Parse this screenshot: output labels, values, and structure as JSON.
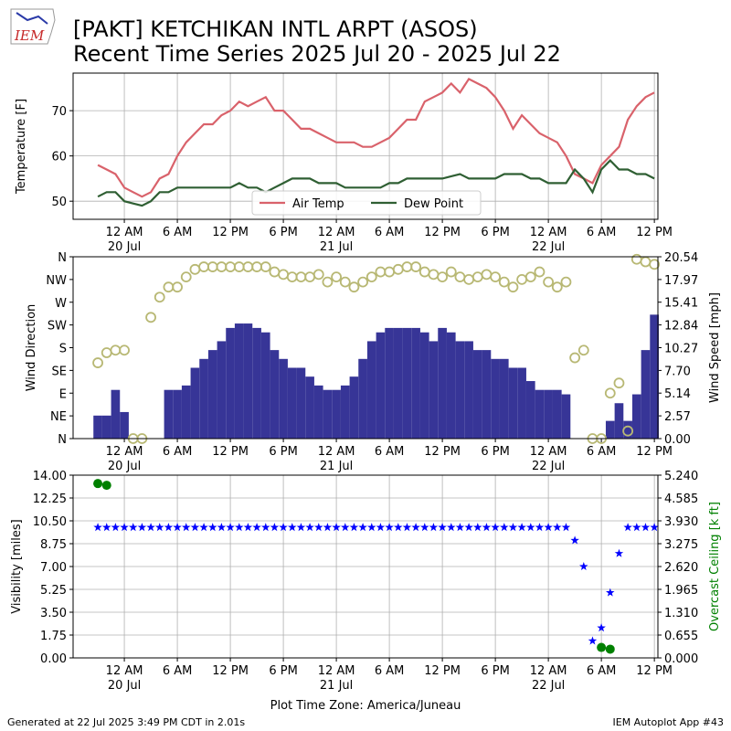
{
  "title": "[PAKT] KETCHIKAN INTL ARPT (ASOS)",
  "subtitle": "Recent Time Series 2025 Jul 20 - 2025 Jul 22",
  "logo": "IEM",
  "footer_left": "Generated at 22 Jul 2025 3:49 PM CDT in 2.01s",
  "footer_right": "IEM Autoplot App #43",
  "chart_data": [
    {
      "type": "line",
      "ylabel": "Temperature [F]",
      "grid": true,
      "legend": "lower center",
      "x": [
        "2025-07-19 21:00",
        "2025-07-19 22:00",
        "2025-07-19 23:00",
        "2025-07-20 00:00",
        "2025-07-20 01:00",
        "2025-07-20 02:00",
        "2025-07-20 03:00",
        "2025-07-20 04:00",
        "2025-07-20 05:00",
        "2025-07-20 06:00",
        "2025-07-20 07:00",
        "2025-07-20 08:00",
        "2025-07-20 09:00",
        "2025-07-20 10:00",
        "2025-07-20 11:00",
        "2025-07-20 12:00",
        "2025-07-20 13:00",
        "2025-07-20 14:00",
        "2025-07-20 15:00",
        "2025-07-20 16:00",
        "2025-07-20 17:00",
        "2025-07-20 18:00",
        "2025-07-20 19:00",
        "2025-07-20 20:00",
        "2025-07-20 21:00",
        "2025-07-20 22:00",
        "2025-07-20 23:00",
        "2025-07-21 00:00",
        "2025-07-21 01:00",
        "2025-07-21 02:00",
        "2025-07-21 03:00",
        "2025-07-21 04:00",
        "2025-07-21 05:00",
        "2025-07-21 06:00",
        "2025-07-21 07:00",
        "2025-07-21 08:00",
        "2025-07-21 09:00",
        "2025-07-21 10:00",
        "2025-07-21 11:00",
        "2025-07-21 12:00",
        "2025-07-21 13:00",
        "2025-07-21 14:00",
        "2025-07-21 15:00",
        "2025-07-21 16:00",
        "2025-07-21 17:00",
        "2025-07-21 18:00",
        "2025-07-21 19:00",
        "2025-07-21 20:00",
        "2025-07-21 21:00",
        "2025-07-21 22:00",
        "2025-07-21 23:00",
        "2025-07-22 00:00",
        "2025-07-22 01:00",
        "2025-07-22 02:00",
        "2025-07-22 03:00",
        "2025-07-22 04:00",
        "2025-07-22 05:00",
        "2025-07-22 06:00",
        "2025-07-22 07:00",
        "2025-07-22 08:00",
        "2025-07-22 09:00",
        "2025-07-22 10:00",
        "2025-07-22 11:00",
        "2025-07-22 12:00"
      ],
      "xlim": [
        "2025-07-19 18:12",
        "2025-07-22 12:24"
      ],
      "xticks": [
        {
          "value": "2025-07-20 00:00",
          "label": "12 AM\n20 Jul"
        },
        {
          "value": "2025-07-20 06:00",
          "label": "6 AM"
        },
        {
          "value": "2025-07-20 12:00",
          "label": "12 PM"
        },
        {
          "value": "2025-07-20 18:00",
          "label": "6 PM"
        },
        {
          "value": "2025-07-21 00:00",
          "label": "12 AM\n21 Jul"
        },
        {
          "value": "2025-07-21 06:00",
          "label": "6 AM"
        },
        {
          "value": "2025-07-21 12:00",
          "label": "12 PM"
        },
        {
          "value": "2025-07-21 18:00",
          "label": "6 PM"
        },
        {
          "value": "2025-07-22 00:00",
          "label": "12 AM\n22 Jul"
        },
        {
          "value": "2025-07-22 06:00",
          "label": "6 AM"
        },
        {
          "value": "2025-07-22 12:00",
          "label": "12 PM"
        }
      ],
      "ylim": [
        46,
        78.3
      ],
      "yticks": [
        50,
        60,
        70
      ],
      "series": [
        {
          "name": "Air Temp",
          "color": "#d9626b",
          "values": [
            58,
            57,
            56,
            53,
            52,
            51,
            52,
            55,
            56,
            60,
            63,
            65,
            67,
            67,
            69,
            70,
            72,
            71,
            72,
            73,
            70,
            70,
            68,
            66,
            66,
            65,
            64,
            63,
            63,
            63,
            62,
            62,
            63,
            64,
            66,
            68,
            68,
            72,
            73,
            74,
            76,
            74,
            77,
            76,
            75,
            73,
            70,
            66,
            69,
            67,
            65,
            64,
            63,
            60,
            56,
            55,
            54,
            58,
            60,
            62,
            68,
            71,
            73,
            74
          ]
        },
        {
          "name": "Dew Point",
          "color": "#2f5f33",
          "values": [
            51,
            52,
            52,
            50,
            49.5,
            49,
            50,
            52,
            52,
            53,
            53,
            53,
            53,
            53,
            53,
            53,
            54,
            53,
            53,
            52,
            53,
            54,
            55,
            55,
            55,
            54,
            54,
            54,
            53,
            53,
            53,
            53,
            53,
            54,
            54,
            55,
            55,
            55,
            55,
            55,
            55.5,
            56,
            55,
            55,
            55,
            55,
            56,
            56,
            56,
            55,
            55,
            54,
            54,
            54,
            57,
            55,
            52,
            57,
            59,
            57,
            57,
            56,
            56,
            55
          ]
        }
      ]
    },
    {
      "type": "combo",
      "ylabel": "Wind Direction",
      "y2label": "Wind Speed [mph]",
      "grid": false,
      "x": [
        "2025-07-19 21:00",
        "2025-07-19 22:00",
        "2025-07-19 23:00",
        "2025-07-20 00:00",
        "2025-07-20 01:00",
        "2025-07-20 02:00",
        "2025-07-20 03:00",
        "2025-07-20 04:00",
        "2025-07-20 05:00",
        "2025-07-20 06:00",
        "2025-07-20 07:00",
        "2025-07-20 08:00",
        "2025-07-20 09:00",
        "2025-07-20 10:00",
        "2025-07-20 11:00",
        "2025-07-20 12:00",
        "2025-07-20 13:00",
        "2025-07-20 14:00",
        "2025-07-20 15:00",
        "2025-07-20 16:00",
        "2025-07-20 17:00",
        "2025-07-20 18:00",
        "2025-07-20 19:00",
        "2025-07-20 20:00",
        "2025-07-20 21:00",
        "2025-07-20 22:00",
        "2025-07-20 23:00",
        "2025-07-21 00:00",
        "2025-07-21 01:00",
        "2025-07-21 02:00",
        "2025-07-21 03:00",
        "2025-07-21 04:00",
        "2025-07-21 05:00",
        "2025-07-21 06:00",
        "2025-07-21 07:00",
        "2025-07-21 08:00",
        "2025-07-21 09:00",
        "2025-07-21 10:00",
        "2025-07-21 11:00",
        "2025-07-21 12:00",
        "2025-07-21 13:00",
        "2025-07-21 14:00",
        "2025-07-21 15:00",
        "2025-07-21 16:00",
        "2025-07-21 17:00",
        "2025-07-21 18:00",
        "2025-07-21 19:00",
        "2025-07-21 20:00",
        "2025-07-21 21:00",
        "2025-07-21 22:00",
        "2025-07-21 23:00",
        "2025-07-22 00:00",
        "2025-07-22 01:00",
        "2025-07-22 02:00",
        "2025-07-22 03:00",
        "2025-07-22 04:00",
        "2025-07-22 05:00",
        "2025-07-22 06:00",
        "2025-07-22 07:00",
        "2025-07-22 08:00",
        "2025-07-22 09:00",
        "2025-07-22 10:00",
        "2025-07-22 11:00",
        "2025-07-22 12:00"
      ],
      "xlim": [
        "2025-07-19 18:12",
        "2025-07-22 12:24"
      ],
      "xticks": [
        {
          "value": "2025-07-20 00:00",
          "label": "12 AM\n20 Jul"
        },
        {
          "value": "2025-07-20 06:00",
          "label": "6 AM"
        },
        {
          "value": "2025-07-20 12:00",
          "label": "12 PM"
        },
        {
          "value": "2025-07-20 18:00",
          "label": "6 PM"
        },
        {
          "value": "2025-07-21 00:00",
          "label": "12 AM\n21 Jul"
        },
        {
          "value": "2025-07-21 06:00",
          "label": "6 AM"
        },
        {
          "value": "2025-07-21 12:00",
          "label": "12 PM"
        },
        {
          "value": "2025-07-21 18:00",
          "label": "6 PM"
        },
        {
          "value": "2025-07-22 00:00",
          "label": "12 AM\n22 Jul"
        },
        {
          "value": "2025-07-22 06:00",
          "label": "6 AM"
        },
        {
          "value": "2025-07-22 12:00",
          "label": "12 PM"
        }
      ],
      "ylim": [
        0,
        360
      ],
      "yticks": [
        {
          "value": 0,
          "label": "N"
        },
        {
          "value": 45,
          "label": "NE"
        },
        {
          "value": 90,
          "label": "E"
        },
        {
          "value": 135,
          "label": "SE"
        },
        {
          "value": 180,
          "label": "S"
        },
        {
          "value": 225,
          "label": "SW"
        },
        {
          "value": 270,
          "label": "W"
        },
        {
          "value": 315,
          "label": "NW"
        },
        {
          "value": 360,
          "label": "N"
        }
      ],
      "y2lim": [
        0,
        20.54
      ],
      "y2ticks": [
        {
          "value": 0,
          "label": "0.00"
        },
        2.57,
        5.14,
        {
          "value": 7.7,
          "label": "7.70"
        },
        10.27,
        12.84,
        15.41,
        17.97,
        20.54
      ],
      "series": [
        {
          "name": "Wind Speed",
          "type": "bar",
          "axis": "y2",
          "color": "#373597",
          "values": [
            2.6,
            2.6,
            5.5,
            3,
            0,
            0,
            0,
            0,
            5.5,
            5.5,
            6,
            8,
            9,
            10,
            11,
            12.5,
            13,
            13,
            12.5,
            12,
            10,
            9,
            8,
            8,
            7,
            6,
            5.5,
            5.5,
            6,
            7,
            9,
            11,
            12,
            12.5,
            12.5,
            12.5,
            12.5,
            12,
            11,
            12.5,
            12,
            11,
            11,
            10,
            10,
            9,
            9,
            8,
            8,
            6.5,
            5.5,
            5.5,
            5.5,
            5,
            0,
            0,
            0,
            0,
            2,
            4,
            2,
            5,
            10,
            14
          ]
        },
        {
          "name": "Wind Direction",
          "type": "scatter",
          "marker": "circle-open",
          "color": "#b8b874",
          "values": [
            150,
            170,
            175,
            175,
            0,
            0,
            240,
            280,
            300,
            300,
            320,
            335,
            340,
            340,
            340,
            340,
            340,
            340,
            340,
            340,
            330,
            325,
            320,
            320,
            320,
            325,
            310,
            320,
            310,
            300,
            310,
            320,
            330,
            330,
            335,
            340,
            340,
            330,
            325,
            320,
            330,
            320,
            315,
            320,
            325,
            320,
            310,
            300,
            315,
            320,
            330,
            310,
            300,
            310,
            160,
            175,
            0,
            0,
            90,
            110,
            15,
            355,
            350,
            345
          ]
        }
      ]
    },
    {
      "type": "scatter",
      "ylabel": "Visibility [miles]",
      "y2label": "Overcast Ceiling [k ft]",
      "y2label_color": "#008000",
      "xlabel": "Plot Time Zone: America/Juneau",
      "grid": true,
      "x": [
        "2025-07-19 21:00",
        "2025-07-19 22:00",
        "2025-07-19 23:00",
        "2025-07-20 00:00",
        "2025-07-20 01:00",
        "2025-07-20 02:00",
        "2025-07-20 03:00",
        "2025-07-20 04:00",
        "2025-07-20 05:00",
        "2025-07-20 06:00",
        "2025-07-20 07:00",
        "2025-07-20 08:00",
        "2025-07-20 09:00",
        "2025-07-20 10:00",
        "2025-07-20 11:00",
        "2025-07-20 12:00",
        "2025-07-20 13:00",
        "2025-07-20 14:00",
        "2025-07-20 15:00",
        "2025-07-20 16:00",
        "2025-07-20 17:00",
        "2025-07-20 18:00",
        "2025-07-20 19:00",
        "2025-07-20 20:00",
        "2025-07-20 21:00",
        "2025-07-20 22:00",
        "2025-07-20 23:00",
        "2025-07-21 00:00",
        "2025-07-21 01:00",
        "2025-07-21 02:00",
        "2025-07-21 03:00",
        "2025-07-21 04:00",
        "2025-07-21 05:00",
        "2025-07-21 06:00",
        "2025-07-21 07:00",
        "2025-07-21 08:00",
        "2025-07-21 09:00",
        "2025-07-21 10:00",
        "2025-07-21 11:00",
        "2025-07-21 12:00",
        "2025-07-21 13:00",
        "2025-07-21 14:00",
        "2025-07-21 15:00",
        "2025-07-21 16:00",
        "2025-07-21 17:00",
        "2025-07-21 18:00",
        "2025-07-21 19:00",
        "2025-07-21 20:00",
        "2025-07-21 21:00",
        "2025-07-21 22:00",
        "2025-07-21 23:00",
        "2025-07-22 00:00",
        "2025-07-22 01:00",
        "2025-07-22 02:00",
        "2025-07-22 03:00",
        "2025-07-22 04:00",
        "2025-07-22 05:00",
        "2025-07-22 06:00",
        "2025-07-22 07:00",
        "2025-07-22 08:00",
        "2025-07-22 09:00",
        "2025-07-22 10:00",
        "2025-07-22 11:00",
        "2025-07-22 12:00"
      ],
      "xlim": [
        "2025-07-19 18:12",
        "2025-07-22 12:24"
      ],
      "xticks": [
        {
          "value": "2025-07-20 00:00",
          "label": "12 AM\n20 Jul"
        },
        {
          "value": "2025-07-20 06:00",
          "label": "6 AM"
        },
        {
          "value": "2025-07-20 12:00",
          "label": "12 PM"
        },
        {
          "value": "2025-07-20 18:00",
          "label": "6 PM"
        },
        {
          "value": "2025-07-21 00:00",
          "label": "12 AM\n21 Jul"
        },
        {
          "value": "2025-07-21 06:00",
          "label": "6 AM"
        },
        {
          "value": "2025-07-21 12:00",
          "label": "12 PM"
        },
        {
          "value": "2025-07-21 18:00",
          "label": "6 PM"
        },
        {
          "value": "2025-07-22 00:00",
          "label": "12 AM\n22 Jul"
        },
        {
          "value": "2025-07-22 06:00",
          "label": "6 AM"
        },
        {
          "value": "2025-07-22 12:00",
          "label": "12 PM"
        }
      ],
      "ylim": [
        0,
        14
      ],
      "yticks": [
        {
          "value": 0,
          "label": "0.00"
        },
        1.75,
        {
          "value": 3.5,
          "label": "3.50"
        },
        5.25,
        {
          "value": 7,
          "label": "7.00"
        },
        8.75,
        {
          "value": 10.5,
          "label": "10.50"
        },
        12.25,
        {
          "value": 14,
          "label": "14.00"
        }
      ],
      "y2lim": [
        0,
        5.24
      ],
      "y2ticks": [
        {
          "value": 0,
          "label": "0.000"
        },
        0.655,
        {
          "value": 1.31,
          "label": "1.310"
        },
        1.965,
        {
          "value": 2.62,
          "label": "2.620"
        },
        3.275,
        {
          "value": 3.93,
          "label": "3.930"
        },
        4.585,
        {
          "value": 5.24,
          "label": "5.240"
        }
      ],
      "series": [
        {
          "name": "Visibility",
          "marker": "star",
          "color": "#0000ff",
          "values": [
            10,
            10,
            10,
            10,
            10,
            10,
            10,
            10,
            10,
            10,
            10,
            10,
            10,
            10,
            10,
            10,
            10,
            10,
            10,
            10,
            10,
            10,
            10,
            10,
            10,
            10,
            10,
            10,
            10,
            10,
            10,
            10,
            10,
            10,
            10,
            10,
            10,
            10,
            10,
            10,
            10,
            10,
            10,
            10,
            10,
            10,
            10,
            10,
            10,
            10,
            10,
            10,
            10,
            10,
            9,
            7,
            1.3,
            2.3,
            5,
            8,
            10,
            10,
            10,
            10
          ]
        },
        {
          "name": "Overcast Ceiling",
          "marker": "circle",
          "axis": "y2",
          "color": "#008000",
          "values": [
            5.0,
            4.95,
            null,
            null,
            null,
            null,
            null,
            null,
            null,
            null,
            null,
            null,
            null,
            null,
            null,
            null,
            null,
            null,
            null,
            null,
            null,
            null,
            null,
            null,
            null,
            null,
            null,
            null,
            null,
            null,
            null,
            null,
            null,
            null,
            null,
            null,
            null,
            null,
            null,
            null,
            null,
            null,
            null,
            null,
            null,
            null,
            null,
            null,
            null,
            null,
            null,
            null,
            null,
            null,
            null,
            null,
            null,
            0.3,
            0.25,
            null,
            null,
            null,
            null,
            null
          ]
        }
      ]
    }
  ]
}
